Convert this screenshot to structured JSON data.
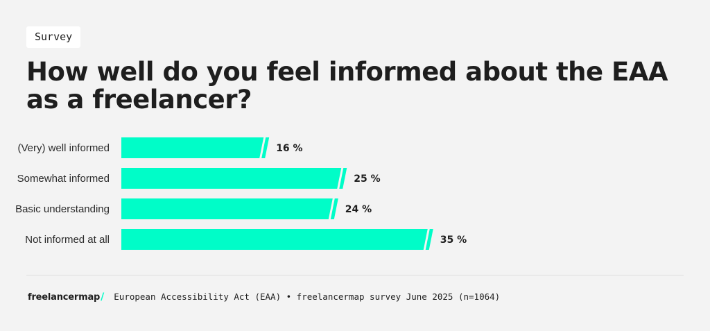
{
  "badge": "Survey",
  "title": "How well do you feel informed about the EAA as a freelancer?",
  "colors": {
    "bar": "#00fdc8",
    "background": "#f3f3f3",
    "text": "#1e1e1e"
  },
  "chart_data": {
    "type": "bar",
    "orientation": "horizontal",
    "categories": [
      "(Very) well informed",
      "Somewhat informed",
      "Basic understanding",
      "Not informed at all"
    ],
    "values": [
      16,
      25,
      24,
      35
    ],
    "value_suffix": " %",
    "title": "How well do you feel informed about the EAA as a freelancer?",
    "xlabel": "",
    "ylabel": "",
    "xlim": [
      0,
      40
    ],
    "grid": false,
    "legend": "none"
  },
  "footer": {
    "brand": "freelancermap",
    "brand_mark": "/",
    "source": "European Accessibility Act (EAA) • freelancermap survey June 2025 (n=1064)"
  }
}
